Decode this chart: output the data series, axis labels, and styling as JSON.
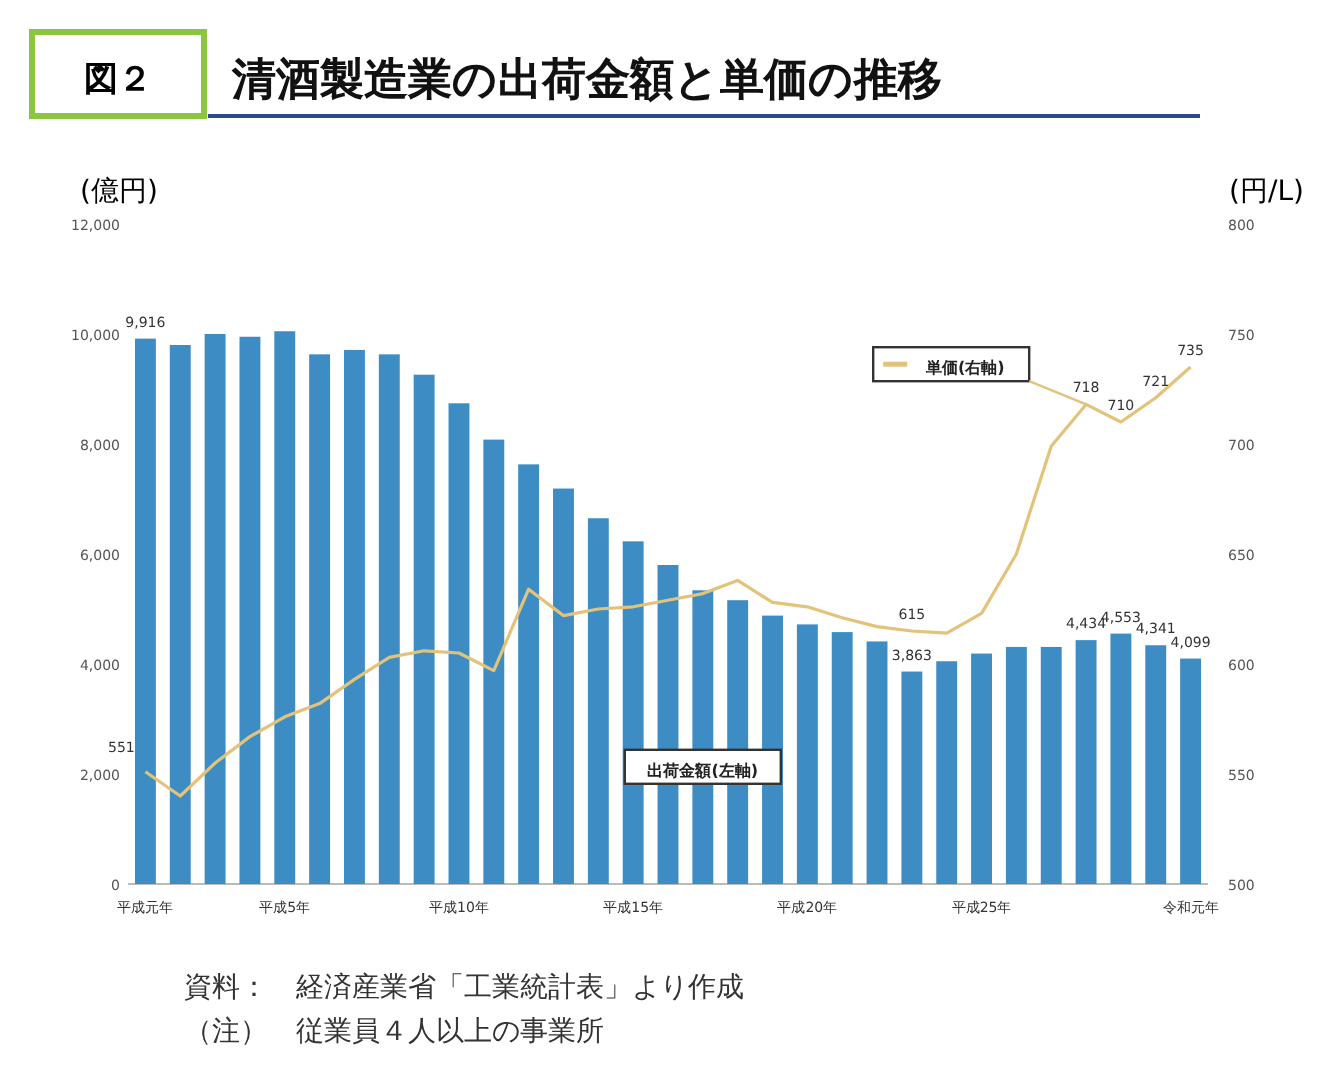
{
  "chart_data": {
    "type": "bar",
    "title": "清酒製造業の出荷金額と単価の推移",
    "ylabel": "(億円)",
    "y2label": "(円/L)",
    "annotations": [
      "図２",
      "資料：　経済産業省「工業統計表」より作成",
      "（注）　従業員４人以上の事業所"
    ],
    "categories": [
      "平成元年",
      null,
      null,
      null,
      "平成5年",
      null,
      null,
      null,
      null,
      "平成10年",
      null,
      null,
      null,
      null,
      "平成15年",
      null,
      null,
      null,
      null,
      "平成20年",
      null,
      null,
      null,
      null,
      "平成25年",
      null,
      null,
      null,
      null,
      null,
      "令和元年"
    ],
    "series": [
      {
        "name": "出荷金額(左軸)",
        "color": "#3d8cc4",
        "values": [
          9916,
          9800,
          10000,
          9950,
          10050,
          9630,
          9710,
          9630,
          9260,
          8740,
          8080,
          7630,
          7190,
          6650,
          6230,
          5800,
          5340,
          5160,
          4880,
          4720,
          4580,
          4410,
          3863,
          4050,
          4190,
          4310,
          4310,
          4434,
          4553,
          4341,
          4099
        ],
        "value_labels": [
          "9,916",
          null,
          null,
          null,
          null,
          null,
          null,
          null,
          null,
          null,
          null,
          null,
          null,
          null,
          null,
          null,
          null,
          null,
          null,
          null,
          null,
          null,
          "3,863",
          null,
          null,
          null,
          null,
          "4,434",
          "4,553",
          "4,341",
          "4,099"
        ]
      },
      {
        "name": "単価(右軸)",
        "type": "line",
        "axis": "y2",
        "color": "#e3c27a",
        "values": [
          551,
          540,
          555,
          567,
          576,
          582,
          593,
          603,
          606,
          605,
          597,
          634,
          622,
          625,
          626,
          629,
          632,
          638,
          628,
          626,
          621,
          617,
          615,
          614,
          623,
          650,
          699,
          718,
          710,
          721,
          735
        ],
        "value_labels": [
          "551",
          null,
          null,
          null,
          null,
          null,
          null,
          null,
          null,
          null,
          null,
          null,
          null,
          null,
          null,
          null,
          null,
          null,
          null,
          null,
          null,
          null,
          "615",
          null,
          null,
          null,
          null,
          "718",
          "710",
          "721",
          "735"
        ]
      }
    ],
    "ylim": [
      0,
      12000
    ],
    "yticks": [
      {
        "value": 0,
        "label": "0"
      },
      {
        "value": 2000,
        "label": "2,000"
      },
      {
        "value": 4000,
        "label": "4,000"
      },
      {
        "value": 6000,
        "label": "6,000"
      },
      {
        "value": 8000,
        "label": "8,000"
      },
      {
        "value": 10000,
        "label": "10,000"
      },
      {
        "value": 12000,
        "label": "12,000"
      }
    ],
    "y2lim": [
      500,
      800
    ],
    "y2ticks": [
      500,
      550,
      600,
      650,
      700,
      750,
      800
    ]
  }
}
